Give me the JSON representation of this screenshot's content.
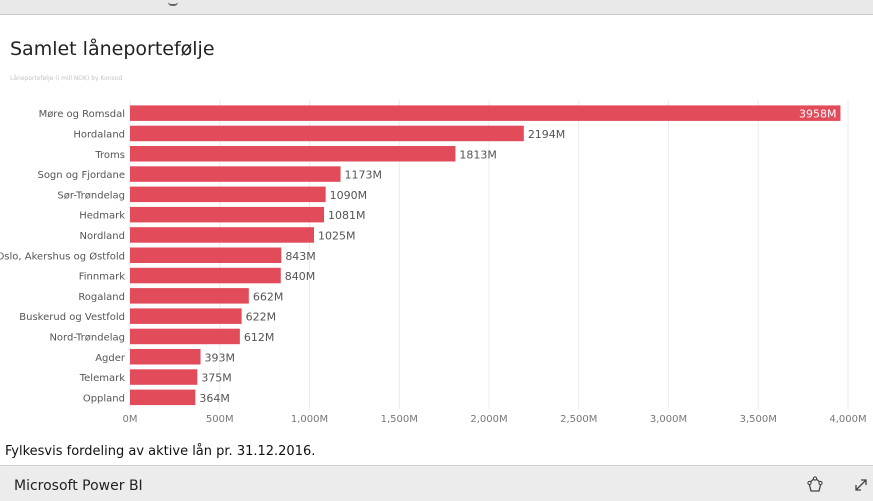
{
  "chart_data": {
    "type": "bar",
    "orientation": "horizontal",
    "title": "Samlet låneportefølje",
    "subtitle": "Låneportefølje (i mill NOK) by Konsod",
    "categories": [
      "Møre og Romsdal",
      "Hordaland",
      "Troms",
      "Sogn og Fjordane",
      "Sør-Trøndelag",
      "Hedmark",
      "Nordland",
      "Oslo, Akershus og Østfold",
      "Finnmark",
      "Rogaland",
      "Buskerud og Vestfold",
      "Nord-Trøndelag",
      "Agder",
      "Telemark",
      "Oppland"
    ],
    "values": [
      3958,
      2194,
      1813,
      1173,
      1090,
      1081,
      1025,
      843,
      840,
      662,
      622,
      612,
      393,
      375,
      364
    ],
    "data_labels": [
      "3958M",
      "2194M",
      "1813M",
      "1173M",
      "1090M",
      "1081M",
      "1025M",
      "843M",
      "840M",
      "662M",
      "622M",
      "612M",
      "393M",
      "375M",
      "364M"
    ],
    "xlim": [
      0,
      4000
    ],
    "xticks": [
      0,
      500,
      1000,
      1500,
      2000,
      2500,
      3000,
      3500,
      4000
    ],
    "xtick_labels": [
      "0M",
      "500M",
      "1,000M",
      "1,500M",
      "2,000M",
      "2,500M",
      "3,000M",
      "3,500M",
      "4,000M"
    ],
    "grid": true,
    "bar_color": "#e14b5a"
  },
  "caption": "Fylkesvis fordeling av aktive lån pr. 31.12.2016.",
  "footer": {
    "brand": "Microsoft Power BI",
    "icons": [
      "share-icon",
      "expand-icon"
    ]
  }
}
